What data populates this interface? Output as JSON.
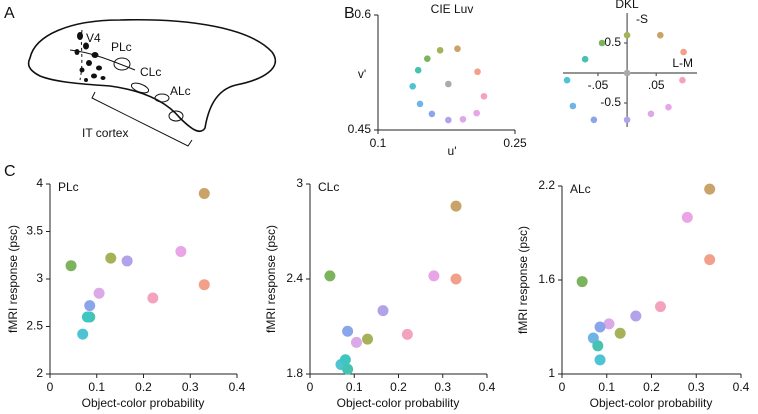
{
  "panels": [
    "A",
    "B",
    "C"
  ],
  "diagram": {
    "labels": [
      "V4",
      "PLc",
      "CLc",
      "ALc",
      "IT cortex"
    ]
  },
  "chart_data": [
    {
      "type": "scatter",
      "title": "CIE Luv",
      "xlabel": "u'",
      "ylabel": "v'",
      "x": [
        0.187,
        0.209,
        0.216,
        0.208,
        0.193,
        0.177,
        0.159,
        0.146,
        0.138,
        0.144,
        0.154,
        0.168,
        0.177
      ],
      "values": [
        0.556,
        0.526,
        0.494,
        0.472,
        0.464,
        0.463,
        0.471,
        0.484,
        0.507,
        0.528,
        0.543,
        0.554,
        0.51
      ],
      "colors": [
        "#c9a368",
        "#f2a08a",
        "#f5a3bd",
        "#e9a5e6",
        "#dba8e8",
        "#b1a2ea",
        "#8aa5ea",
        "#6fb4e4",
        "#4ec3d3",
        "#45c2b0",
        "#7cb35d",
        "#a6b15a",
        "#aaaaaa"
      ],
      "xlim": [
        0.1,
        0.25
      ],
      "xticks": [
        0.1,
        0.25
      ],
      "ylim": [
        0.45,
        0.6
      ],
      "yticks": [
        0.45,
        0.6
      ],
      "axes": "box"
    },
    {
      "type": "scatter",
      "title": "DKL",
      "xlabel": "L-M",
      "ylabel": "-S",
      "x": [
        0.057,
        0.097,
        0.095,
        0.071,
        0.041,
        0,
        -0.057,
        -0.093,
        -0.103,
        -0.072,
        -0.043,
        0,
        0
      ],
      "values": [
        0.63,
        0.35,
        -0.12,
        -0.57,
        -0.68,
        -0.78,
        -0.78,
        -0.55,
        -0.12,
        0.23,
        0.5,
        0.63,
        0
      ],
      "colors": [
        "#c9a368",
        "#f2a08a",
        "#f5a3bd",
        "#e9a5e6",
        "#dba8e8",
        "#b1a2ea",
        "#8aa5ea",
        "#6fb4e4",
        "#4ec3d3",
        "#45c2b0",
        "#7cb35d",
        "#a6b15a",
        "#aaaaaa"
      ],
      "xlim": [
        -0.11,
        0.12
      ],
      "xticks": [
        {
          "value": -0.05,
          "label": "-.05"
        },
        {
          "value": 0.05,
          "label": ".05"
        }
      ],
      "ylim": [
        -0.9,
        1
      ],
      "yticks": [
        0.5,
        -0.5
      ],
      "axes": "origin"
    },
    {
      "type": "scatter",
      "title": "PLc",
      "xlabel": "Object-color probability",
      "ylabel": "fMRI response (psc)",
      "x": [
        0.33,
        0.33,
        0.22,
        0.28,
        0.105,
        0.165,
        0.085,
        0.07,
        0.085,
        0.08,
        0.045,
        0.13
      ],
      "values": [
        3.9,
        2.94,
        2.8,
        3.29,
        2.85,
        3.19,
        2.72,
        2.42,
        2.6,
        2.6,
        3.14,
        3.22
      ],
      "colors": [
        "#c9a368",
        "#f2a08a",
        "#f5a3bd",
        "#e9a5e6",
        "#dba8e8",
        "#b1a2ea",
        "#8aa5ea",
        "#4ec3d3",
        "#45c2b0",
        "#3fc6c0",
        "#7cb35d",
        "#a6b15a"
      ],
      "xlim": [
        0,
        0.4
      ],
      "xticks": [
        0,
        0.1,
        0.2,
        0.3,
        0.4
      ],
      "ylim": [
        2,
        4
      ],
      "yticks": [
        2,
        2.5,
        3,
        3.5,
        4
      ],
      "axes": "box"
    },
    {
      "type": "scatter",
      "title": "CLc",
      "xlabel": "Object-color probability",
      "ylabel": "fMRI response (psc)",
      "x": [
        0.33,
        0.33,
        0.22,
        0.28,
        0.105,
        0.165,
        0.085,
        0.07,
        0.085,
        0.08,
        0.045,
        0.13
      ],
      "values": [
        2.86,
        2.4,
        2.05,
        2.42,
        2.0,
        2.2,
        2.07,
        1.86,
        1.83,
        1.89,
        2.42,
        2.02
      ],
      "colors": [
        "#c9a368",
        "#f2a08a",
        "#f5a3bd",
        "#e9a5e6",
        "#dba8e8",
        "#b1a2ea",
        "#8aa5ea",
        "#4ec3d3",
        "#45c2b0",
        "#3fc6c0",
        "#7cb35d",
        "#a6b15a"
      ],
      "xlim": [
        0,
        0.4
      ],
      "xticks": [
        0,
        0.1,
        0.2,
        0.3,
        0.4
      ],
      "ylim": [
        1.8,
        3
      ],
      "yticks": [
        1.8,
        2.4,
        3
      ],
      "axes": "box"
    },
    {
      "type": "scatter",
      "title": "ALc",
      "xlabel": "Object-color probability",
      "ylabel": "fMRI response (psc)",
      "x": [
        0.33,
        0.33,
        0.22,
        0.28,
        0.105,
        0.165,
        0.085,
        0.07,
        0.085,
        0.08,
        0.045,
        0.13
      ],
      "values": [
        2.18,
        1.73,
        1.43,
        2.0,
        1.32,
        1.37,
        1.3,
        1.23,
        1.09,
        1.18,
        1.59,
        1.26
      ],
      "colors": [
        "#c9a368",
        "#f2a08a",
        "#f5a3bd",
        "#e9a5e6",
        "#dba8e8",
        "#b1a2ea",
        "#8aa5ea",
        "#6fb4e4",
        "#4ec3d3",
        "#45c2b0",
        "#7cb35d",
        "#a6b15a"
      ],
      "xlim": [
        0,
        0.4
      ],
      "xticks": [
        0,
        0.1,
        0.2,
        0.3,
        0.4
      ],
      "ylim": [
        1,
        2.2
      ],
      "yticks": [
        1,
        1.6,
        2.2
      ],
      "axes": "box"
    }
  ]
}
